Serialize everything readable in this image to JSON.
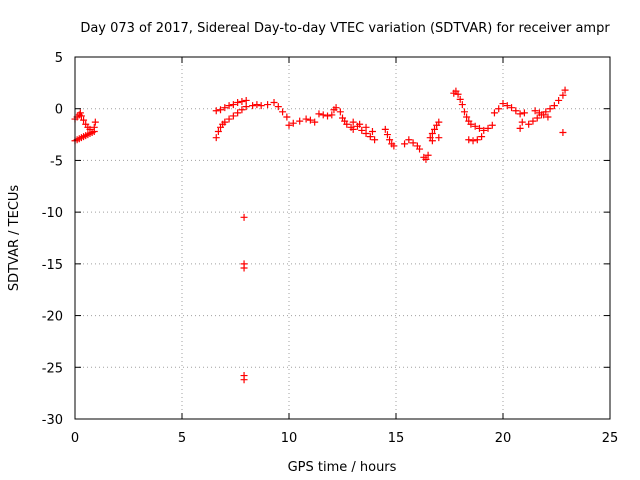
{
  "chart_data": {
    "type": "scatter",
    "title": "Day 073 of 2017, Sidereal Day-to-day VTEC variation (SDTVAR) for receiver ampr",
    "xlabel": "GPS time / hours",
    "ylabel": "SDTVAR / TECUs",
    "xlim": [
      0,
      25
    ],
    "ylim": [
      -30,
      5
    ],
    "xticks": [
      "0",
      "5",
      "10",
      "15",
      "20",
      "25"
    ],
    "yticks": [
      "5",
      "0",
      "-5",
      "-10",
      "-15",
      "-20",
      "-25",
      "-30"
    ],
    "grid": true,
    "marker": "plus",
    "color": "#ff0000",
    "series": [
      {
        "name": "SDTVAR",
        "points": [
          [
            0.0,
            -1.0
          ],
          [
            0.1,
            -0.8
          ],
          [
            0.2,
            -0.6
          ],
          [
            0.25,
            -0.4
          ],
          [
            0.3,
            -0.7
          ],
          [
            0.4,
            -1.1
          ],
          [
            0.5,
            -1.5
          ],
          [
            0.6,
            -1.8
          ],
          [
            0.7,
            -2.0
          ],
          [
            0.0,
            -3.1
          ],
          [
            0.1,
            -3.0
          ],
          [
            0.2,
            -2.9
          ],
          [
            0.3,
            -2.8
          ],
          [
            0.4,
            -2.7
          ],
          [
            0.5,
            -2.6
          ],
          [
            0.6,
            -2.5
          ],
          [
            0.7,
            -2.4
          ],
          [
            0.8,
            -2.3
          ],
          [
            0.9,
            -2.2
          ],
          [
            0.9,
            -1.8
          ],
          [
            0.95,
            -1.3
          ],
          [
            6.6,
            -0.2
          ],
          [
            6.8,
            -0.1
          ],
          [
            7.0,
            0.1
          ],
          [
            7.2,
            0.3
          ],
          [
            7.4,
            0.4
          ],
          [
            7.6,
            0.6
          ],
          [
            7.8,
            0.7
          ],
          [
            8.0,
            0.8
          ],
          [
            6.6,
            -2.8
          ],
          [
            6.7,
            -2.2
          ],
          [
            6.8,
            -1.8
          ],
          [
            6.9,
            -1.5
          ],
          [
            7.0,
            -1.3
          ],
          [
            7.2,
            -1.0
          ],
          [
            7.4,
            -0.7
          ],
          [
            7.6,
            -0.4
          ],
          [
            7.8,
            -0.1
          ],
          [
            8.0,
            0.2
          ],
          [
            8.3,
            0.3
          ],
          [
            8.5,
            0.4
          ],
          [
            8.7,
            0.3
          ],
          [
            9.0,
            0.4
          ],
          [
            9.3,
            0.6
          ],
          [
            9.5,
            0.2
          ],
          [
            9.7,
            -0.3
          ],
          [
            9.9,
            -0.8
          ],
          [
            10.0,
            -1.6
          ],
          [
            10.2,
            -1.4
          ],
          [
            10.5,
            -1.2
          ],
          [
            10.8,
            -1.0
          ],
          [
            11.0,
            -1.1
          ],
          [
            11.2,
            -1.3
          ],
          [
            11.4,
            -0.5
          ],
          [
            11.6,
            -0.6
          ],
          [
            11.8,
            -0.7
          ],
          [
            12.0,
            -0.6
          ],
          [
            12.1,
            -0.1
          ],
          [
            12.2,
            0.1
          ],
          [
            12.4,
            -0.3
          ],
          [
            12.5,
            -0.9
          ],
          [
            12.6,
            -1.2
          ],
          [
            12.7,
            -1.5
          ],
          [
            12.9,
            -1.8
          ],
          [
            13.0,
            -2.0
          ],
          [
            13.2,
            -1.7
          ],
          [
            13.4,
            -2.1
          ],
          [
            13.6,
            -2.4
          ],
          [
            13.8,
            -2.7
          ],
          [
            14.0,
            -3.0
          ],
          [
            13.0,
            -1.3
          ],
          [
            13.3,
            -1.5
          ],
          [
            13.6,
            -1.8
          ],
          [
            13.9,
            -2.2
          ],
          [
            14.5,
            -2.0
          ],
          [
            14.6,
            -2.5
          ],
          [
            14.7,
            -3.0
          ],
          [
            14.8,
            -3.4
          ],
          [
            14.9,
            -3.6
          ],
          [
            15.4,
            -3.4
          ],
          [
            15.6,
            -3.0
          ],
          [
            15.8,
            -3.3
          ],
          [
            16.0,
            -3.6
          ],
          [
            16.1,
            -3.9
          ],
          [
            16.3,
            -4.7
          ],
          [
            16.4,
            -4.9
          ],
          [
            16.5,
            -4.5
          ],
          [
            16.6,
            -2.8
          ],
          [
            16.7,
            -2.4
          ],
          [
            16.8,
            -2.0
          ],
          [
            16.9,
            -1.6
          ],
          [
            17.0,
            -1.3
          ],
          [
            17.0,
            -2.8
          ],
          [
            16.7,
            -3.1
          ],
          [
            17.7,
            1.5
          ],
          [
            17.8,
            1.7
          ],
          [
            17.9,
            1.4
          ],
          [
            18.0,
            0.9
          ],
          [
            18.1,
            0.4
          ],
          [
            18.2,
            -0.3
          ],
          [
            18.3,
            -0.8
          ],
          [
            18.4,
            -1.2
          ],
          [
            18.5,
            -1.5
          ],
          [
            18.7,
            -1.7
          ],
          [
            18.9,
            -1.9
          ],
          [
            19.1,
            -2.1
          ],
          [
            19.3,
            -1.9
          ],
          [
            19.5,
            -1.6
          ],
          [
            18.4,
            -3.0
          ],
          [
            18.6,
            -3.1
          ],
          [
            18.8,
            -3.0
          ],
          [
            19.0,
            -2.7
          ],
          [
            19.6,
            -0.4
          ],
          [
            19.8,
            0.0
          ],
          [
            20.0,
            0.5
          ],
          [
            20.2,
            0.3
          ],
          [
            20.4,
            0.1
          ],
          [
            20.6,
            -0.2
          ],
          [
            20.8,
            -0.5
          ],
          [
            20.9,
            -1.3
          ],
          [
            20.8,
            -1.9
          ],
          [
            21.0,
            -0.4
          ],
          [
            21.2,
            -1.5
          ],
          [
            21.4,
            -1.2
          ],
          [
            21.6,
            -0.9
          ],
          [
            21.8,
            -0.6
          ],
          [
            22.0,
            -0.3
          ],
          [
            22.2,
            0.0
          ],
          [
            22.4,
            0.3
          ],
          [
            22.6,
            0.8
          ],
          [
            22.8,
            1.3
          ],
          [
            22.9,
            1.8
          ],
          [
            21.5,
            -0.2
          ],
          [
            21.7,
            -0.4
          ],
          [
            21.9,
            -0.6
          ],
          [
            22.1,
            -0.8
          ],
          [
            22.8,
            -2.3
          ],
          [
            7.9,
            -10.5
          ],
          [
            7.9,
            -15.0
          ],
          [
            7.9,
            -15.4
          ],
          [
            7.9,
            -25.8
          ],
          [
            7.9,
            -26.2
          ]
        ]
      }
    ]
  }
}
